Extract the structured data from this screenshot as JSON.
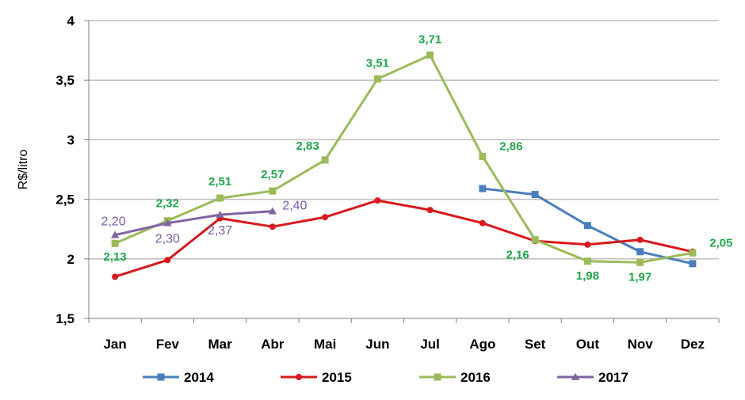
{
  "chart_data": {
    "type": "line",
    "ylabel": "R$/litro",
    "ylim": [
      1.5,
      4
    ],
    "yticks": [
      "1,5",
      "2",
      "2,5",
      "3",
      "3,5",
      "4"
    ],
    "ytick_values": [
      1.5,
      2,
      2.5,
      3,
      3.5,
      4
    ],
    "categories": [
      "Jan",
      "Fev",
      "Mar",
      "Abr",
      "Mai",
      "Jun",
      "Jul",
      "Ago",
      "Set",
      "Out",
      "Nov",
      "Dez"
    ],
    "grid": "horizontal",
    "legend_position": "bottom",
    "series": [
      {
        "name": "2014",
        "color": "#4a7ebb",
        "marker": "square",
        "values": [
          null,
          null,
          null,
          null,
          null,
          null,
          null,
          2.59,
          2.54,
          2.28,
          2.06,
          1.96
        ],
        "labels": []
      },
      {
        "name": "2015",
        "color": "#d7191c",
        "marker": "circle",
        "values": [
          1.85,
          1.99,
          2.34,
          2.27,
          2.35,
          2.49,
          2.41,
          2.3,
          2.15,
          2.12,
          2.16,
          2.06
        ],
        "labels": []
      },
      {
        "name": "2016",
        "color": "#9bbb59",
        "marker": "square",
        "values": [
          2.13,
          2.32,
          2.51,
          2.57,
          2.83,
          3.51,
          3.71,
          2.86,
          2.16,
          1.98,
          1.97,
          2.05
        ],
        "labels": [
          "2,13",
          "2,32",
          "2,51",
          "2,57",
          "2,83",
          "3,51",
          "3,71",
          "2,86",
          "2,16",
          "1,98",
          "1,97",
          "2,05"
        ],
        "label_color": "#1fa64b"
      },
      {
        "name": "2017",
        "color": "#8064a2",
        "marker": "triangle",
        "values": [
          2.2,
          2.3,
          2.37,
          2.4,
          null,
          null,
          null,
          null,
          null,
          null,
          null,
          null
        ],
        "labels": [
          "2,20",
          "2,30",
          "2,37",
          "2,40"
        ],
        "label_color": "#7a5aa0"
      }
    ]
  }
}
